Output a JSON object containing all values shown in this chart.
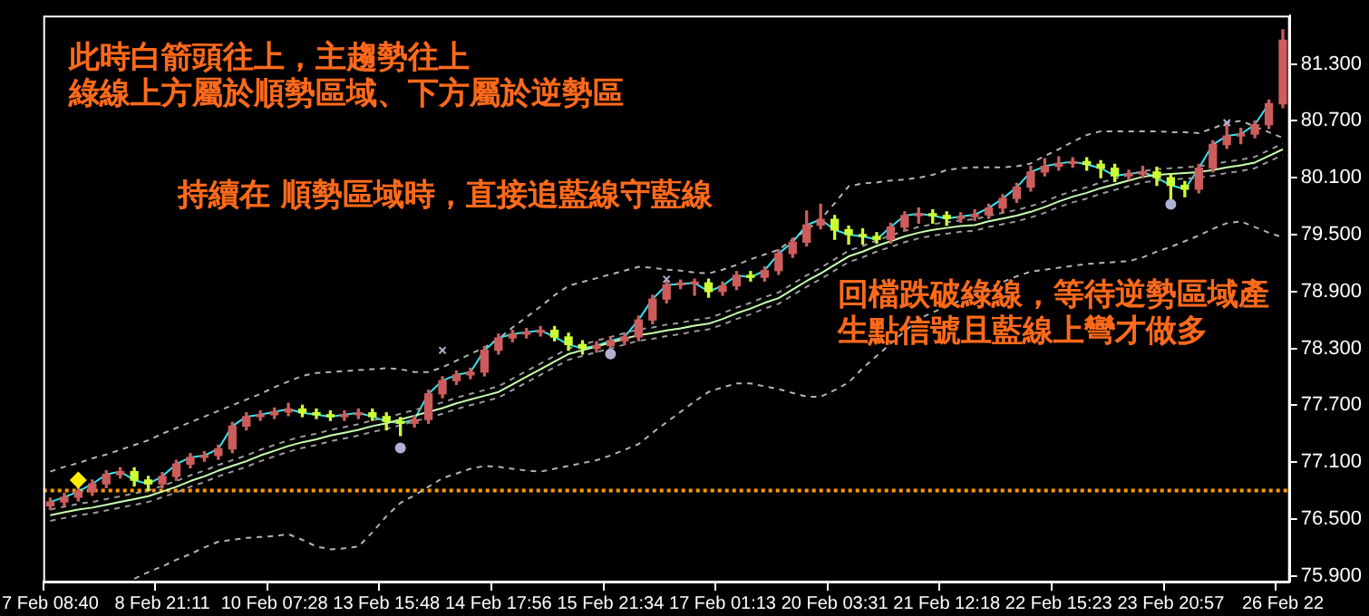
{
  "chart_data": {
    "type": "candlestick",
    "categories": [
      "7 Feb 08:40",
      null,
      null,
      null,
      null,
      null,
      null,
      null,
      "8 Feb 21:11",
      null,
      null,
      null,
      null,
      null,
      null,
      null,
      "10 Feb 07:28",
      null,
      null,
      null,
      null,
      null,
      null,
      null,
      "13 Feb 15:48",
      null,
      null,
      null,
      null,
      null,
      null,
      null,
      "14 Feb 17:56",
      null,
      null,
      null,
      null,
      null,
      null,
      null,
      "15 Feb 21:34",
      null,
      null,
      null,
      null,
      null,
      null,
      null,
      "17 Feb 01:13",
      null,
      null,
      null,
      null,
      null,
      null,
      null,
      "20 Feb 03:31",
      null,
      null,
      null,
      null,
      null,
      null,
      null,
      "21 Feb 12:18",
      null,
      null,
      null,
      null,
      null,
      null,
      null,
      "22 Feb 15:23",
      null,
      null,
      null,
      null,
      null,
      null,
      null,
      "23 Feb 20:57",
      null,
      null,
      null,
      null,
      null,
      null,
      null,
      "26 Feb 22"
    ],
    "ohlc": [
      [
        76.64,
        76.72,
        76.6,
        76.68
      ],
      [
        76.68,
        76.77,
        76.64,
        76.73
      ],
      [
        76.73,
        76.83,
        76.69,
        76.79
      ],
      [
        76.79,
        76.91,
        76.75,
        76.87
      ],
      [
        76.87,
        77.01,
        76.83,
        76.97
      ],
      [
        76.97,
        77.04,
        76.93,
        77.0
      ],
      [
        77.0,
        77.04,
        76.85,
        76.91
      ],
      [
        76.91,
        76.95,
        76.8,
        76.87
      ],
      [
        76.87,
        76.99,
        76.83,
        76.95
      ],
      [
        76.95,
        77.12,
        76.91,
        77.08
      ],
      [
        77.08,
        77.19,
        77.04,
        77.15
      ],
      [
        77.15,
        77.21,
        77.11,
        77.17
      ],
      [
        77.17,
        77.28,
        77.13,
        77.24
      ],
      [
        77.24,
        77.52,
        77.2,
        77.48
      ],
      [
        77.48,
        77.62,
        77.44,
        77.58
      ],
      [
        77.58,
        77.64,
        77.54,
        77.6
      ],
      [
        77.6,
        77.67,
        77.56,
        77.63
      ],
      [
        77.63,
        77.72,
        77.59,
        77.66
      ],
      [
        77.66,
        77.7,
        77.58,
        77.62
      ],
      [
        77.62,
        77.66,
        77.56,
        77.6
      ],
      [
        77.6,
        77.64,
        77.54,
        77.58
      ],
      [
        77.58,
        77.64,
        77.54,
        77.6
      ],
      [
        77.6,
        77.66,
        77.56,
        77.62
      ],
      [
        77.62,
        77.66,
        77.54,
        77.58
      ],
      [
        77.58,
        77.62,
        77.44,
        77.53
      ],
      [
        77.53,
        77.57,
        77.38,
        77.51
      ],
      [
        77.51,
        77.59,
        77.47,
        77.55
      ],
      [
        77.55,
        77.86,
        77.51,
        77.82
      ],
      [
        77.82,
        78.0,
        77.78,
        77.96
      ],
      [
        77.96,
        78.06,
        77.92,
        78.02
      ],
      [
        78.02,
        78.09,
        77.98,
        78.05
      ],
      [
        78.05,
        78.32,
        78.01,
        78.28
      ],
      [
        78.28,
        78.45,
        78.24,
        78.41
      ],
      [
        78.41,
        78.49,
        78.37,
        78.45
      ],
      [
        78.45,
        78.51,
        78.41,
        78.47
      ],
      [
        78.47,
        78.53,
        78.43,
        78.49
      ],
      [
        78.49,
        78.53,
        78.38,
        78.42
      ],
      [
        78.42,
        78.46,
        78.28,
        78.34
      ],
      [
        78.34,
        78.38,
        78.24,
        78.3
      ],
      [
        78.3,
        78.37,
        78.26,
        78.33
      ],
      [
        78.33,
        78.42,
        78.29,
        78.38
      ],
      [
        78.38,
        78.46,
        78.34,
        78.42
      ],
      [
        78.42,
        78.64,
        78.38,
        78.6
      ],
      [
        78.6,
        78.86,
        78.56,
        78.82
      ],
      [
        78.82,
        79.01,
        78.78,
        78.97
      ],
      [
        78.97,
        79.02,
        78.93,
        78.98
      ],
      [
        78.98,
        79.03,
        78.86,
        78.99
      ],
      [
        78.99,
        79.03,
        78.84,
        78.9
      ],
      [
        78.9,
        79.0,
        78.86,
        78.96
      ],
      [
        78.96,
        79.11,
        78.92,
        79.07
      ],
      [
        79.07,
        79.11,
        79.01,
        79.05
      ],
      [
        79.05,
        79.16,
        79.01,
        79.12
      ],
      [
        79.12,
        79.34,
        79.08,
        79.3
      ],
      [
        79.3,
        79.46,
        79.26,
        79.42
      ],
      [
        79.42,
        79.75,
        79.38,
        79.6
      ],
      [
        79.6,
        79.82,
        79.56,
        79.66
      ],
      [
        79.66,
        79.7,
        79.45,
        79.55
      ],
      [
        79.55,
        79.59,
        79.4,
        79.5
      ],
      [
        79.5,
        79.56,
        79.4,
        79.48
      ],
      [
        79.48,
        79.52,
        79.41,
        79.45
      ],
      [
        79.45,
        79.62,
        79.41,
        79.58
      ],
      [
        79.58,
        79.74,
        79.54,
        79.7
      ],
      [
        79.7,
        79.78,
        79.62,
        79.72
      ],
      [
        79.72,
        79.76,
        79.62,
        79.7
      ],
      [
        79.7,
        79.74,
        79.6,
        79.67
      ],
      [
        79.67,
        79.73,
        79.63,
        79.69
      ],
      [
        79.69,
        79.76,
        79.65,
        79.71
      ],
      [
        79.71,
        79.82,
        79.67,
        79.78
      ],
      [
        79.78,
        79.92,
        79.74,
        79.88
      ],
      [
        79.88,
        80.04,
        79.84,
        80.0
      ],
      [
        80.0,
        80.22,
        79.96,
        80.16
      ],
      [
        80.16,
        80.3,
        80.12,
        80.22
      ],
      [
        80.22,
        80.32,
        80.18,
        80.25
      ],
      [
        80.25,
        80.31,
        80.21,
        80.27
      ],
      [
        80.27,
        80.31,
        80.18,
        80.24
      ],
      [
        80.24,
        80.28,
        80.1,
        80.2
      ],
      [
        80.2,
        80.24,
        80.06,
        80.12
      ],
      [
        80.12,
        80.18,
        80.08,
        80.14
      ],
      [
        80.14,
        80.22,
        80.1,
        80.16
      ],
      [
        80.16,
        80.21,
        80.02,
        80.1
      ],
      [
        80.1,
        80.14,
        79.82,
        80.02
      ],
      [
        80.02,
        80.06,
        79.9,
        79.98
      ],
      [
        79.98,
        80.24,
        79.94,
        80.2
      ],
      [
        80.2,
        80.49,
        80.16,
        80.45
      ],
      [
        80.45,
        80.68,
        80.41,
        80.54
      ],
      [
        80.54,
        80.62,
        80.46,
        80.56
      ],
      [
        80.56,
        80.7,
        80.52,
        80.66
      ],
      [
        80.66,
        80.92,
        80.62,
        80.88
      ],
      [
        80.88,
        81.66,
        80.84,
        81.55
      ]
    ],
    "colors": [
      "#cd5c5c",
      "#cd5c5c",
      "#cd5c5c",
      "#cd5c5c",
      "#cd5c5c",
      "#cd5c5c",
      "#ccff33",
      "#ccff33",
      "#cd5c5c",
      "#cd5c5c",
      "#cd5c5c",
      "#cd5c5c",
      "#cd5c5c",
      "#cd5c5c",
      "#cd5c5c",
      "#cd5c5c",
      "#cd5c5c",
      "#cd5c5c",
      "#ccff33",
      "#ccff33",
      "#ccff33",
      "#cd5c5c",
      "#cd5c5c",
      "#ccff33",
      "#ccff33",
      "#ccff33",
      "#cd5c5c",
      "#cd5c5c",
      "#cd5c5c",
      "#cd5c5c",
      "#cd5c5c",
      "#cd5c5c",
      "#cd5c5c",
      "#cd5c5c",
      "#cd5c5c",
      "#cd5c5c",
      "#ccff33",
      "#ccff33",
      "#ccff33",
      "#cd5c5c",
      "#cd5c5c",
      "#cd5c5c",
      "#cd5c5c",
      "#cd5c5c",
      "#cd5c5c",
      "#cd5c5c",
      "#cd5c5c",
      "#ccff33",
      "#cd5c5c",
      "#cd5c5c",
      "#ccff33",
      "#cd5c5c",
      "#cd5c5c",
      "#cd5c5c",
      "#cd5c5c",
      "#cd5c5c",
      "#ccff33",
      "#ccff33",
      "#ccff33",
      "#ccff33",
      "#cd5c5c",
      "#cd5c5c",
      "#cd5c5c",
      "#ccff33",
      "#ccff33",
      "#cd5c5c",
      "#cd5c5c",
      "#cd5c5c",
      "#cd5c5c",
      "#cd5c5c",
      "#cd5c5c",
      "#cd5c5c",
      "#cd5c5c",
      "#cd5c5c",
      "#ccff33",
      "#ccff33",
      "#ccff33",
      "#cd5c5c",
      "#cd5c5c",
      "#ccff33",
      "#ccff33",
      "#ccff33",
      "#cd5c5c",
      "#cd5c5c",
      "#cd5c5c",
      "#cd5c5c",
      "#cd5c5c",
      "#cd5c5c",
      "#cd5c5c"
    ],
    "series": [
      {
        "type": "line",
        "color": "#b4b4b4",
        "line_style": "dashed",
        "values": [
          77.0,
          77.05,
          77.09,
          77.14,
          77.18,
          77.23,
          77.28,
          77.33,
          77.4,
          77.46,
          77.52,
          77.58,
          77.64,
          77.7,
          77.76,
          77.82,
          77.89,
          77.95,
          78.01,
          78.04,
          78.05,
          78.06,
          78.07,
          78.08,
          78.09,
          78.08,
          78.05,
          78.05,
          78.1,
          78.17,
          78.24,
          78.31,
          78.4,
          78.52,
          78.63,
          78.74,
          78.86,
          78.96,
          79.0,
          79.04,
          79.08,
          79.12,
          79.16,
          79.15,
          79.13,
          79.12,
          79.1,
          79.09,
          79.13,
          79.18,
          79.24,
          79.29,
          79.34,
          79.45,
          79.55,
          79.66,
          79.83,
          80.01,
          80.04,
          80.05,
          80.07,
          80.08,
          80.1,
          80.13,
          80.18,
          80.2,
          80.21,
          80.21,
          80.21,
          80.22,
          80.25,
          80.33,
          80.4,
          80.48,
          80.55,
          80.59,
          80.59,
          80.59,
          80.59,
          80.59,
          80.58,
          80.58,
          80.57,
          80.62,
          80.68,
          80.7,
          80.64,
          80.58,
          80.52
        ]
      },
      {
        "type": "line",
        "color": "#b4b4b4",
        "line_style": "dashed",
        "values": [
          null,
          null,
          null,
          null,
          null,
          null,
          75.87,
          75.94,
          76.0,
          76.07,
          76.13,
          76.2,
          76.26,
          76.28,
          76.3,
          76.31,
          76.32,
          76.34,
          76.28,
          76.21,
          76.18,
          76.19,
          76.21,
          76.36,
          76.53,
          76.67,
          76.75,
          76.84,
          76.93,
          76.98,
          77.03,
          77.06,
          77.05,
          77.03,
          77.01,
          77.0,
          77.03,
          77.06,
          77.09,
          77.12,
          77.17,
          77.23,
          77.29,
          77.41,
          77.52,
          77.63,
          77.74,
          77.84,
          77.89,
          77.93,
          77.93,
          77.9,
          77.87,
          77.83,
          77.79,
          77.79,
          77.86,
          77.94,
          78.09,
          78.22,
          78.35,
          78.48,
          78.61,
          78.68,
          78.74,
          78.81,
          78.87,
          78.93,
          79.0,
          79.06,
          79.11,
          79.13,
          79.15,
          79.17,
          79.19,
          79.2,
          79.21,
          79.22,
          79.26,
          79.32,
          79.37,
          79.43,
          79.49,
          79.56,
          79.62,
          79.64,
          79.58,
          79.52,
          79.47
        ]
      },
      {
        "type": "line",
        "color": "#9a9a9a",
        "line_style": "dashed",
        "values": [
          76.6,
          76.63,
          76.66,
          76.68,
          76.71,
          76.74,
          76.77,
          76.8,
          76.85,
          76.9,
          76.96,
          77.01,
          77.07,
          77.12,
          77.17,
          77.23,
          77.28,
          77.33,
          77.37,
          77.4,
          77.44,
          77.47,
          77.5,
          77.54,
          77.57,
          77.61,
          77.65,
          77.69,
          77.73,
          77.78,
          77.82,
          77.86,
          77.9,
          77.98,
          78.06,
          78.14,
          78.22,
          78.3,
          78.34,
          78.38,
          78.42,
          78.46,
          78.5,
          78.52,
          78.55,
          78.57,
          78.6,
          78.62,
          78.67,
          78.73,
          78.78,
          78.84,
          78.89,
          78.98,
          79.07,
          79.15,
          79.24,
          79.33,
          79.38,
          79.44,
          79.49,
          79.54,
          79.58,
          79.61,
          79.63,
          79.65,
          79.66,
          79.7,
          79.73,
          79.76,
          79.8,
          79.85,
          79.91,
          79.96,
          80.0,
          80.05,
          80.09,
          80.13,
          80.17,
          80.19,
          80.2,
          80.21,
          80.22,
          80.24,
          80.27,
          80.29,
          80.32,
          80.39,
          80.46
        ]
      },
      {
        "type": "line",
        "color": "#9a9a9a",
        "line_style": "dashed",
        "values": [
          76.48,
          76.51,
          76.54,
          76.56,
          76.59,
          76.62,
          76.65,
          76.68,
          76.73,
          76.78,
          76.84,
          76.89,
          76.95,
          77.0,
          77.05,
          77.11,
          77.16,
          77.21,
          77.25,
          77.28,
          77.32,
          77.35,
          77.38,
          77.42,
          77.45,
          77.49,
          77.53,
          77.57,
          77.61,
          77.66,
          77.7,
          77.74,
          77.78,
          77.86,
          77.94,
          78.02,
          78.1,
          78.18,
          78.22,
          78.26,
          78.3,
          78.34,
          78.38,
          78.4,
          78.43,
          78.45,
          78.48,
          78.5,
          78.55,
          78.61,
          78.66,
          78.72,
          78.77,
          78.86,
          78.95,
          79.03,
          79.12,
          79.21,
          79.26,
          79.32,
          79.37,
          79.42,
          79.46,
          79.49,
          79.51,
          79.53,
          79.54,
          79.58,
          79.61,
          79.64,
          79.68,
          79.73,
          79.79,
          79.84,
          79.88,
          79.93,
          79.97,
          80.01,
          80.05,
          80.07,
          80.08,
          80.09,
          80.1,
          80.12,
          80.15,
          80.17,
          80.2,
          80.27,
          80.34
        ]
      },
      {
        "type": "line",
        "color": "#c8ffb0",
        "line_style": "solid",
        "values": [
          76.54,
          76.57,
          76.6,
          76.62,
          76.65,
          76.68,
          76.71,
          76.74,
          76.79,
          76.84,
          76.9,
          76.95,
          77.01,
          77.06,
          77.11,
          77.17,
          77.22,
          77.27,
          77.31,
          77.34,
          77.38,
          77.41,
          77.44,
          77.48,
          77.51,
          77.55,
          77.59,
          77.63,
          77.67,
          77.72,
          77.76,
          77.8,
          77.84,
          77.92,
          78.0,
          78.08,
          78.16,
          78.24,
          78.28,
          78.32,
          78.36,
          78.4,
          78.44,
          78.46,
          78.49,
          78.51,
          78.54,
          78.56,
          78.61,
          78.67,
          78.72,
          78.78,
          78.83,
          78.92,
          79.01,
          79.09,
          79.18,
          79.27,
          79.32,
          79.38,
          79.43,
          79.48,
          79.52,
          79.55,
          79.57,
          79.59,
          79.6,
          79.64,
          79.67,
          79.7,
          79.74,
          79.79,
          79.85,
          79.9,
          79.94,
          79.99,
          80.03,
          80.07,
          80.11,
          80.13,
          80.14,
          80.15,
          80.16,
          80.18,
          80.21,
          80.23,
          80.26,
          80.33,
          80.4
        ]
      },
      {
        "type": "line",
        "color": "#33e6f0",
        "line_style": "solid",
        "values": [
          76.68,
          76.73,
          76.79,
          76.87,
          76.97,
          77.0,
          76.91,
          76.87,
          76.95,
          77.08,
          77.15,
          77.17,
          77.24,
          77.48,
          77.58,
          77.6,
          77.63,
          77.66,
          77.62,
          77.6,
          77.58,
          77.6,
          77.62,
          77.58,
          77.53,
          77.51,
          77.55,
          77.82,
          77.96,
          78.02,
          78.05,
          78.28,
          78.41,
          78.45,
          78.47,
          78.49,
          78.42,
          78.34,
          78.3,
          78.33,
          78.38,
          78.42,
          78.6,
          78.82,
          78.97,
          78.98,
          78.99,
          78.9,
          78.96,
          79.07,
          79.05,
          79.12,
          79.3,
          79.42,
          79.6,
          79.66,
          79.55,
          79.5,
          79.48,
          79.45,
          79.58,
          79.7,
          79.72,
          79.7,
          79.67,
          79.69,
          79.71,
          79.78,
          79.88,
          80.0,
          80.16,
          80.22,
          80.25,
          80.27,
          80.24,
          80.2,
          80.12,
          80.14,
          80.16,
          80.1,
          80.02,
          79.98,
          80.2,
          80.45,
          80.54,
          80.56,
          80.66,
          80.88,
          null
        ]
      },
      {
        "type": "scatter",
        "color": "#b0b0d0",
        "marker": "cross",
        "values": [
          null,
          null,
          null,
          null,
          null,
          null,
          null,
          null,
          null,
          null,
          null,
          null,
          null,
          null,
          null,
          null,
          null,
          null,
          null,
          null,
          null,
          null,
          null,
          null,
          null,
          null,
          null,
          null,
          78.28,
          null,
          null,
          null,
          null,
          null,
          null,
          null,
          null,
          null,
          null,
          null,
          null,
          null,
          null,
          null,
          79.03,
          null,
          null,
          null,
          null,
          null,
          null,
          null,
          null,
          null,
          null,
          null,
          null,
          null,
          null,
          null,
          null,
          null,
          null,
          null,
          null,
          null,
          null,
          null,
          null,
          null,
          null,
          null,
          null,
          null,
          null,
          null,
          null,
          null,
          null,
          null,
          null,
          null,
          null,
          null,
          80.68,
          null,
          null,
          null,
          null
        ]
      },
      {
        "type": "scatter",
        "color": "#b0b0d0",
        "marker": "circle",
        "values": [
          null,
          null,
          null,
          null,
          null,
          null,
          null,
          null,
          null,
          null,
          null,
          null,
          null,
          null,
          null,
          null,
          null,
          null,
          null,
          null,
          null,
          null,
          null,
          null,
          null,
          77.25,
          null,
          null,
          null,
          null,
          null,
          null,
          null,
          null,
          null,
          null,
          null,
          null,
          null,
          null,
          78.24,
          null,
          null,
          null,
          null,
          null,
          null,
          null,
          null,
          null,
          null,
          null,
          null,
          null,
          null,
          null,
          null,
          null,
          null,
          null,
          null,
          null,
          null,
          null,
          null,
          null,
          null,
          null,
          null,
          null,
          null,
          null,
          null,
          null,
          null,
          null,
          null,
          null,
          null,
          null,
          79.82,
          null,
          null,
          null,
          null,
          null,
          null,
          null,
          null
        ]
      },
      {
        "type": "scatter",
        "color": "#ffee00",
        "marker": "diamond",
        "values": [
          null,
          null,
          76.91,
          null,
          null,
          null,
          null,
          null,
          null,
          null,
          null,
          null,
          null,
          null,
          null,
          null,
          null,
          null,
          null,
          null,
          null,
          null,
          null,
          null,
          null,
          null,
          null,
          null,
          null,
          null,
          null,
          null,
          null,
          null,
          null,
          null,
          null,
          null,
          null,
          null,
          null,
          null,
          null,
          null,
          null,
          null,
          null,
          null,
          null,
          null,
          null,
          null,
          null,
          null,
          null,
          null,
          null,
          null,
          null,
          null,
          null,
          null,
          null,
          null,
          null,
          null,
          null,
          null,
          null,
          null,
          null,
          null,
          null,
          null,
          null,
          null,
          null,
          null,
          null,
          null,
          null,
          null,
          null,
          null,
          null,
          null,
          null,
          null,
          null
        ]
      }
    ],
    "ylim": [
      75.84,
      81.81
    ],
    "yticks": [
      {
        "value": 75.9,
        "label": "75.900"
      },
      {
        "value": 76.5,
        "label": "76.500"
      },
      {
        "value": 77.1,
        "label": "77.100"
      },
      {
        "value": 77.7,
        "label": "77.700"
      },
      {
        "value": 78.3,
        "label": "78.300"
      },
      {
        "value": 78.9,
        "label": "78.900"
      },
      {
        "value": 79.5,
        "label": "79.500"
      },
      {
        "value": 80.1,
        "label": "80.100"
      },
      {
        "value": 80.7,
        "label": "80.700"
      },
      {
        "value": 81.3,
        "label": "81.300"
      }
    ],
    "ref_lines": [
      {
        "axis": "y",
        "value": 76.8,
        "color": "#ff9900",
        "line_style": "dotted"
      }
    ],
    "annotations": [
      "此時白箭頭往上，主趨勢往上",
      "綠線上方屬於順勢區域、下方屬於逆勢區",
      "持續在 順勢區域時，直接追藍線守藍線",
      "回檔跌破綠線，等待逆勢區域產",
      "生點信號且藍線上彎才做多"
    ]
  }
}
